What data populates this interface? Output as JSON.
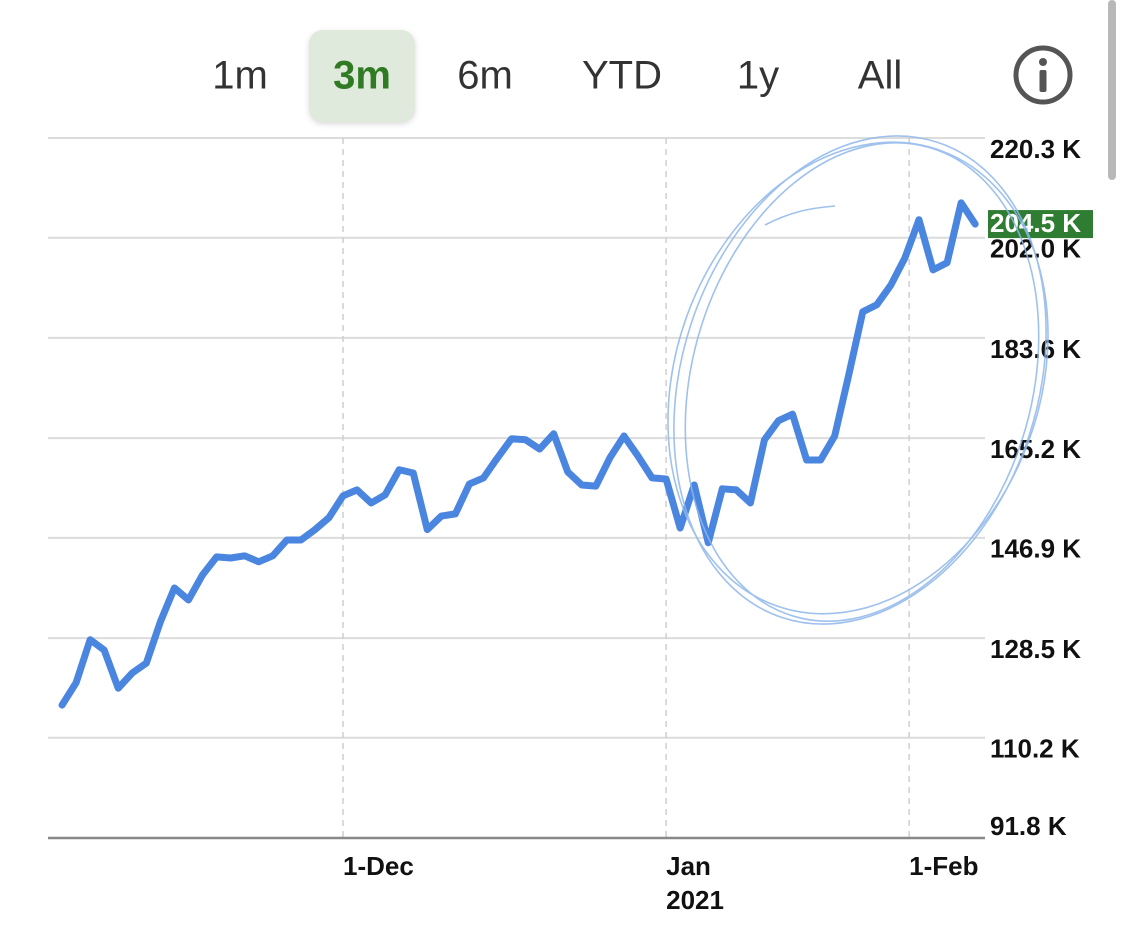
{
  "tabs": [
    "1m",
    "3m",
    "6m",
    "YTD",
    "1y",
    "All"
  ],
  "selected_tab": 1,
  "chart_data": {
    "type": "line",
    "x": [
      0,
      1,
      2,
      3,
      4,
      5,
      6,
      7,
      8,
      9,
      10,
      11,
      12,
      13,
      14,
      15,
      16,
      17,
      18,
      19,
      20,
      21,
      22,
      23,
      24,
      25,
      26,
      27,
      28,
      29,
      30,
      31,
      32,
      33,
      34,
      35,
      36,
      37,
      38,
      39,
      40,
      41,
      42,
      43,
      44,
      45,
      46,
      47,
      48,
      49,
      50,
      51,
      52,
      53,
      54,
      55,
      56,
      57,
      58,
      59,
      60,
      61,
      62,
      63,
      64,
      65
    ],
    "series": [
      {
        "color": "#4a86e0",
        "values": [
          116200,
          120300,
          128200,
          126300,
          119300,
          122100,
          123900,
          131500,
          137700,
          135500,
          140100,
          143400,
          143200,
          143600,
          142500,
          143600,
          146500,
          146500,
          148400,
          150600,
          154600,
          155700,
          153300,
          154800,
          159400,
          158800,
          148400,
          150900,
          151300,
          156800,
          157900,
          161600,
          165100,
          164900,
          163200,
          166000,
          159000,
          156600,
          156400,
          161600,
          165600,
          161900,
          157900,
          157700,
          148700,
          156600,
          146000,
          155900,
          155700,
          153300,
          164900,
          168400,
          169600,
          161200,
          161200,
          165600,
          176800,
          188400,
          189700,
          193300,
          198300,
          205300,
          196100,
          197400,
          208400,
          204500
        ]
      }
    ],
    "xlim": [
      -1,
      65.7
    ],
    "xticks": [
      {
        "value": 20,
        "label": [
          "1-Dec"
        ]
      },
      {
        "value": 43,
        "label": [
          "Jan",
          "2021"
        ]
      },
      {
        "value": 60.3,
        "label": [
          "1-Feb"
        ]
      }
    ],
    "ylim": [
      91800,
      220300
    ],
    "yticks": [
      {
        "value": 220300,
        "label": "220.3 K"
      },
      {
        "value": 202000,
        "label": "202.0 K"
      },
      {
        "value": 183600,
        "label": "183.6 K"
      },
      {
        "value": 165200,
        "label": "165.2 K"
      },
      {
        "value": 146900,
        "label": "146.9 K"
      },
      {
        "value": 128500,
        "label": "128.5 K"
      },
      {
        "value": 110200,
        "label": "110.2 K"
      },
      {
        "value": 91800,
        "label": "91.8 K"
      }
    ],
    "grid": true,
    "current_value": {
      "value": 204500,
      "label": "204.5 K",
      "color": "#2e7d32"
    }
  }
}
